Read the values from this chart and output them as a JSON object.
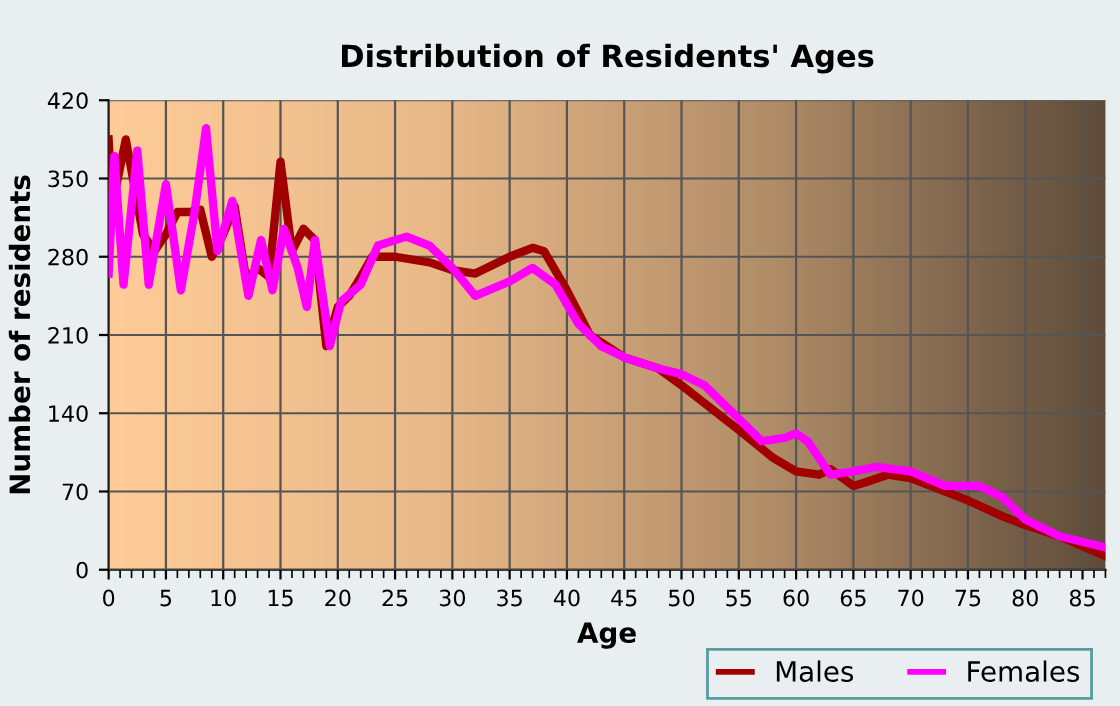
{
  "chart_data": {
    "type": "line",
    "title": "Distribution of Residents' Ages",
    "xlabel": "Age",
    "ylabel": "Number of residents",
    "xlim": [
      0,
      87
    ],
    "xticks": [
      0,
      5,
      10,
      15,
      20,
      25,
      30,
      35,
      40,
      45,
      50,
      55,
      60,
      65,
      70,
      75,
      80,
      85
    ],
    "ylim": [
      0,
      420
    ],
    "yticks": [
      0,
      70,
      140,
      210,
      280,
      350,
      420
    ],
    "grid": true,
    "legend": "bottom right",
    "marker": "none",
    "line_style": "solid",
    "series": [
      {
        "name": "Males",
        "color": "#a00000",
        "x": [
          0,
          0.3,
          0.6,
          1.5,
          3,
          4,
          5,
          6,
          7,
          8,
          9,
          10,
          11,
          12,
          13,
          14,
          15,
          16,
          17,
          18,
          19,
          20,
          21,
          22,
          23,
          25,
          28,
          30,
          32,
          35,
          37,
          38,
          40,
          42,
          45,
          48,
          50,
          55,
          58,
          60,
          62,
          63,
          65,
          66,
          68,
          70,
          75,
          78,
          80,
          83,
          87
        ],
        "values": [
          385,
          330,
          340,
          385,
          300,
          285,
          300,
          320,
          320,
          322,
          280,
          300,
          325,
          260,
          270,
          262,
          365,
          285,
          305,
          295,
          200,
          235,
          245,
          262,
          280,
          280,
          275,
          268,
          265,
          280,
          288,
          285,
          250,
          210,
          190,
          180,
          165,
          125,
          100,
          88,
          85,
          90,
          75,
          78,
          85,
          82,
          62,
          48,
          40,
          30,
          12
        ]
      },
      {
        "name": "Females",
        "color": "#ff00ff",
        "x": [
          0,
          0.5,
          1.3,
          2.5,
          3.5,
          5,
          6.3,
          7.5,
          8.5,
          9.5,
          10.8,
          12.2,
          13.3,
          14.3,
          15.3,
          16.5,
          17.3,
          18,
          19.3,
          20.3,
          22,
          23.5,
          26,
          28,
          30,
          32,
          35,
          37,
          39,
          41,
          43,
          45,
          48,
          50,
          52,
          55,
          57,
          59,
          60,
          61,
          63,
          65,
          67,
          70,
          73,
          76,
          78,
          80,
          83,
          87
        ],
        "values": [
          265,
          370,
          255,
          375,
          255,
          345,
          250,
          320,
          395,
          285,
          330,
          245,
          295,
          250,
          305,
          270,
          235,
          295,
          200,
          240,
          255,
          290,
          298,
          290,
          270,
          245,
          258,
          270,
          255,
          220,
          200,
          190,
          180,
          175,
          165,
          135,
          115,
          118,
          122,
          115,
          85,
          88,
          92,
          88,
          75,
          75,
          65,
          45,
          30,
          20
        ]
      }
    ]
  }
}
